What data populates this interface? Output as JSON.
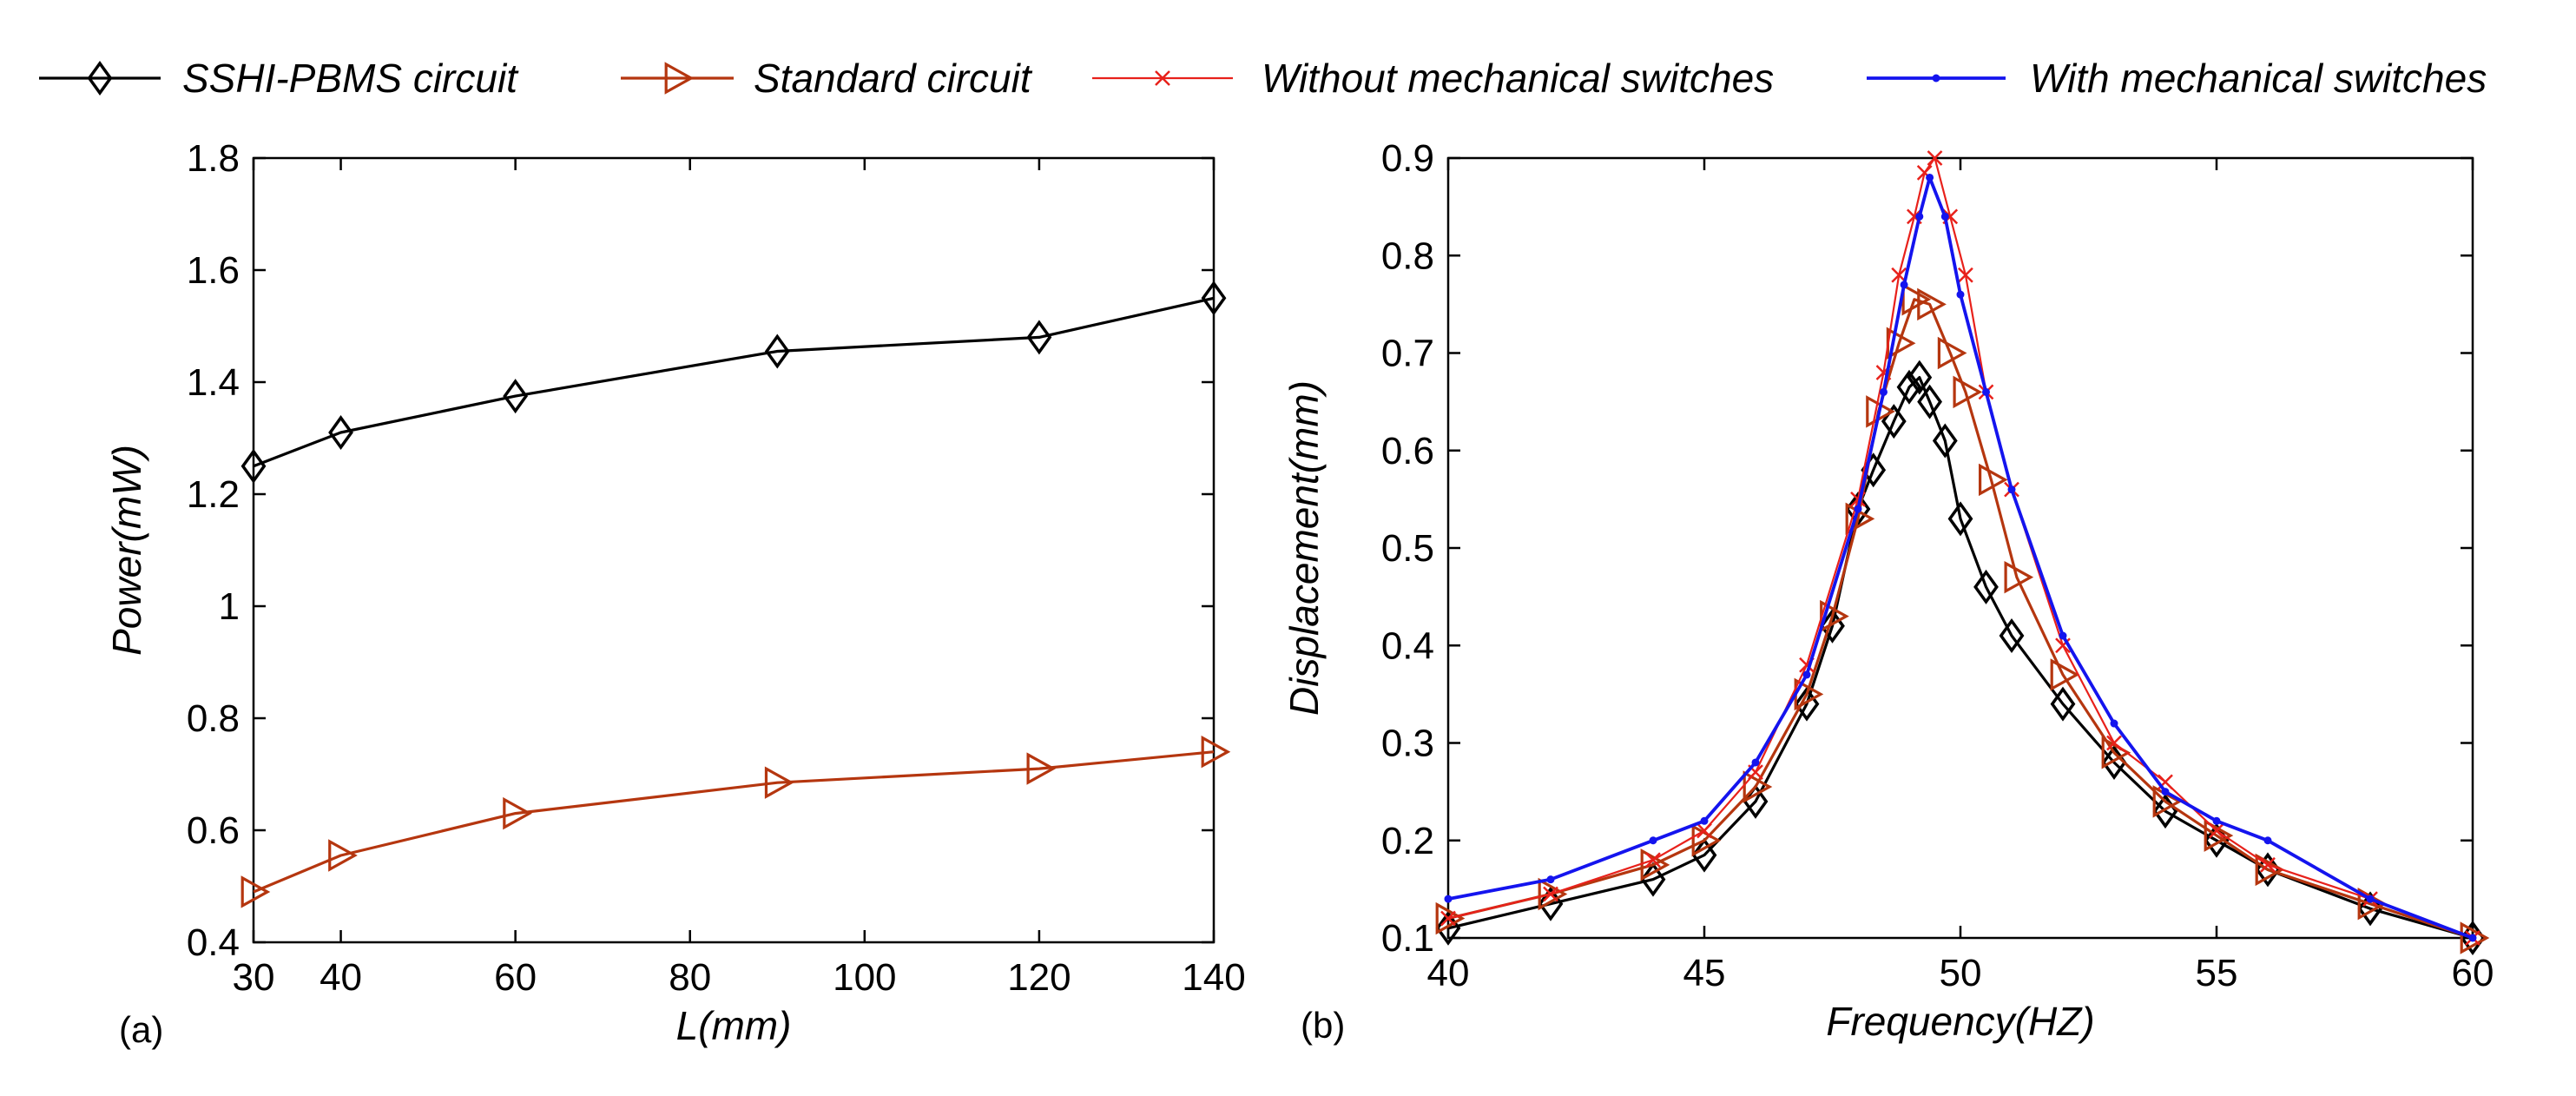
{
  "colors": {
    "ssh": "#000000",
    "standard": "#b5360f",
    "without": "#e8211b",
    "with": "#1414ee"
  },
  "legend": {
    "items": [
      {
        "label": "SSHI-PBMS circuit",
        "series": "ssh",
        "marker": "diamond"
      },
      {
        "label": "Standard circuit",
        "series": "standard",
        "marker": "triangle-right"
      },
      {
        "label": "Without mechanical switches",
        "series": "without",
        "marker": "x"
      },
      {
        "label": "With mechanical switches",
        "series": "with",
        "marker": "dot"
      }
    ]
  },
  "chart_data": [
    {
      "type": "line",
      "panel_label": "(a)",
      "xlabel": "L(mm)",
      "ylabel": "Power(mW)",
      "xlim": [
        30,
        140
      ],
      "ylim": [
        0.4,
        1.8
      ],
      "xticks": [
        30,
        40,
        60,
        80,
        100,
        120,
        140
      ],
      "yticks": [
        0.4,
        0.6,
        0.8,
        1,
        1.2,
        1.4,
        1.6,
        1.8
      ],
      "series": [
        {
          "name": "SSHI-PBMS circuit",
          "key": "ssh",
          "marker": "diamond",
          "x": [
            30,
            40,
            60,
            90,
            120,
            140
          ],
          "y": [
            1.25,
            1.31,
            1.375,
            1.455,
            1.48,
            1.55
          ]
        },
        {
          "name": "Standard circuit",
          "key": "standard",
          "marker": "triangle-right",
          "x": [
            30,
            40,
            60,
            90,
            120,
            140
          ],
          "y": [
            0.49,
            0.555,
            0.63,
            0.685,
            0.71,
            0.74
          ]
        }
      ]
    },
    {
      "type": "line",
      "panel_label": "(b)",
      "xlabel": "Frequency(HZ)",
      "ylabel": "Displacement(mm)",
      "xlim": [
        40,
        60
      ],
      "ylim": [
        0.1,
        0.9
      ],
      "xticks": [
        40,
        45,
        50,
        55,
        60
      ],
      "yticks": [
        0.1,
        0.2,
        0.3,
        0.4,
        0.5,
        0.6,
        0.7,
        0.8,
        0.9
      ],
      "series": [
        {
          "name": "SSHI-PBMS circuit",
          "key": "ssh",
          "marker": "diamond",
          "x": [
            40,
            42,
            44,
            45,
            46,
            47,
            47.5,
            48,
            48.3,
            48.7,
            49,
            49.2,
            49.4,
            49.7,
            50,
            50.5,
            51,
            52,
            53,
            54,
            55,
            56,
            58,
            60
          ],
          "y": [
            0.11,
            0.135,
            0.16,
            0.185,
            0.24,
            0.34,
            0.42,
            0.54,
            0.58,
            0.63,
            0.665,
            0.675,
            0.65,
            0.61,
            0.53,
            0.46,
            0.41,
            0.34,
            0.28,
            0.23,
            0.2,
            0.17,
            0.13,
            0.1
          ]
        },
        {
          "name": "Standard circuit",
          "key": "standard",
          "marker": "triangle-right",
          "x": [
            40,
            42,
            44,
            45,
            46,
            47,
            47.5,
            48,
            48.4,
            48.8,
            49.1,
            49.4,
            49.8,
            50.1,
            50.6,
            51.1,
            52,
            53,
            54,
            55,
            56,
            58,
            60
          ],
          "y": [
            0.12,
            0.145,
            0.175,
            0.2,
            0.255,
            0.35,
            0.43,
            0.53,
            0.64,
            0.71,
            0.755,
            0.75,
            0.7,
            0.66,
            0.57,
            0.47,
            0.37,
            0.29,
            0.24,
            0.205,
            0.17,
            0.135,
            0.1
          ]
        },
        {
          "name": "Without mechanical switches",
          "key": "without",
          "marker": "x",
          "x": [
            40,
            42,
            44,
            45,
            46,
            47,
            48,
            48.5,
            48.8,
            49.1,
            49.3,
            49.5,
            49.8,
            50.1,
            50.5,
            51,
            52,
            53,
            54,
            55,
            56,
            58,
            60
          ],
          "y": [
            0.12,
            0.145,
            0.18,
            0.21,
            0.27,
            0.38,
            0.55,
            0.68,
            0.78,
            0.84,
            0.885,
            0.9,
            0.84,
            0.78,
            0.66,
            0.56,
            0.4,
            0.3,
            0.26,
            0.21,
            0.175,
            0.14,
            0.1
          ]
        },
        {
          "name": "With mechanical switches",
          "key": "with",
          "marker": "dot",
          "x": [
            40,
            42,
            44,
            45,
            46,
            47,
            48,
            48.5,
            48.9,
            49.2,
            49.4,
            49.7,
            50,
            50.5,
            51,
            52,
            53,
            54,
            55,
            56,
            58,
            60
          ],
          "y": [
            0.14,
            0.16,
            0.2,
            0.22,
            0.28,
            0.37,
            0.54,
            0.66,
            0.77,
            0.84,
            0.88,
            0.84,
            0.76,
            0.66,
            0.56,
            0.41,
            0.32,
            0.25,
            0.22,
            0.2,
            0.14,
            0.1
          ]
        }
      ]
    }
  ]
}
